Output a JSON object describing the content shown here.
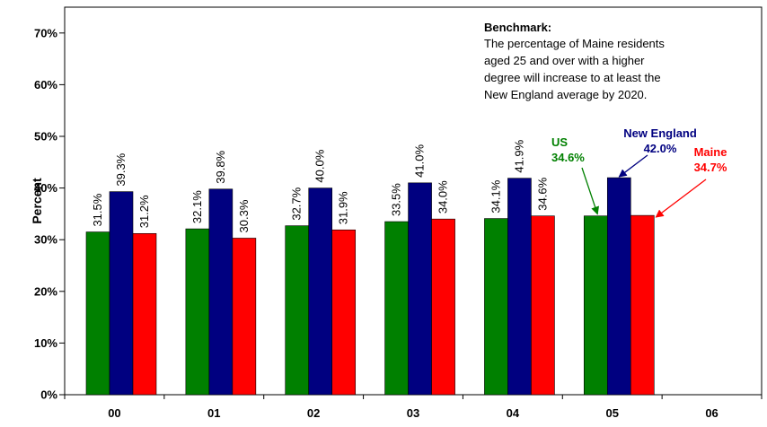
{
  "chart_data": {
    "type": "bar",
    "categories": [
      "00",
      "01",
      "02",
      "03",
      "04",
      "05",
      "06"
    ],
    "series": [
      {
        "name": "US",
        "color": "#008000",
        "values": [
          31.5,
          32.1,
          32.7,
          33.5,
          34.1,
          34.6,
          null
        ]
      },
      {
        "name": "New England",
        "color": "#000080",
        "values": [
          39.3,
          39.8,
          40.0,
          41.0,
          41.9,
          42.0,
          null
        ]
      },
      {
        "name": "Maine",
        "color": "#ff0000",
        "values": [
          31.2,
          30.3,
          31.9,
          34.0,
          34.6,
          34.7,
          null
        ]
      }
    ],
    "data_labels": [
      [
        "31.5%",
        "39.3%",
        "31.2%"
      ],
      [
        "32.1%",
        "39.8%",
        "30.3%"
      ],
      [
        "32.7%",
        "40.0%",
        "31.9%"
      ],
      [
        "33.5%",
        "41.0%",
        "34.0%"
      ],
      [
        "34.1%",
        "41.9%",
        "34.6%"
      ],
      [
        "",
        "",
        ""
      ],
      [
        "",
        "",
        ""
      ]
    ],
    "ylabel": "Percent",
    "ylim": [
      0,
      75
    ],
    "yticks": [
      0,
      10,
      20,
      30,
      40,
      50,
      60,
      70
    ],
    "ytick_labels": [
      "0%",
      "10%",
      "20%",
      "30%",
      "40%",
      "50%",
      "60%",
      "70%"
    ],
    "grid": false,
    "benchmark": {
      "title": "Benchmark:",
      "lines": [
        "The percentage of Maine residents",
        "aged 25 and over with a higher",
        "degree will increase to at least the",
        "New England average by 2020."
      ]
    },
    "callouts": [
      {
        "series": "US",
        "name_text": "US",
        "value_text": "34.6%",
        "color": "#008000"
      },
      {
        "series": "New England",
        "name_text": "New England",
        "value_text": "42.0%",
        "color": "#000080"
      },
      {
        "series": "Maine",
        "name_text": "Maine",
        "value_text": "34.7%",
        "color": "#ff0000"
      }
    ]
  }
}
